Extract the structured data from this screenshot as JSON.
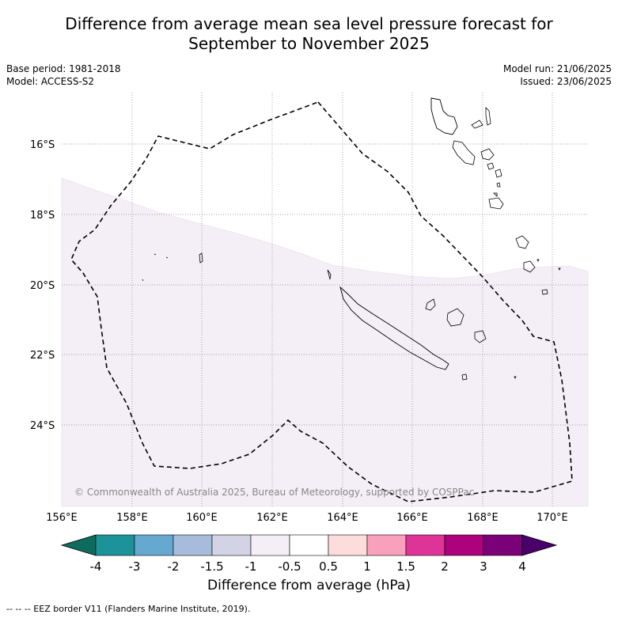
{
  "title_line1": "Difference from average mean sea level pressure forecast for",
  "title_line2": "September to November 2025",
  "base_period": "Base period: 1981-2018",
  "model": "Model: ACCESS-S2",
  "model_run": "Model run: 21/06/2025",
  "issued": "Issued: 23/06/2025",
  "copyright": "© Commonwealth of Australia 2025, Bureau of Meteorology, supported by COSPPac",
  "lat_labels": [
    "16°S",
    "18°S",
    "20°S",
    "22°S",
    "24°S"
  ],
  "lon_labels": [
    "156°E",
    "158°E",
    "160°E",
    "162°E",
    "164°E",
    "166°E",
    "168°E",
    "170°E"
  ],
  "colorbar": {
    "title": "Difference from average (hPa)",
    "labels": [
      "-4",
      "-3",
      "-2",
      "-1.5",
      "-1",
      "-0.5",
      "0.5",
      "1",
      "1.5",
      "2",
      "3",
      "4"
    ],
    "colors": [
      "#0d6b5e",
      "#1c9399",
      "#65a9d0",
      "#a7bcdc",
      "#d3d3e6",
      "#f4eef6",
      "#ffffff",
      "#fddcdc",
      "#f9a1bc",
      "#de3497",
      "#ae017e",
      "#7a0177",
      "#49006a"
    ]
  },
  "legend": "--  --  -- EEZ border V11 (Flanders Marine Institute, 2019)."
}
